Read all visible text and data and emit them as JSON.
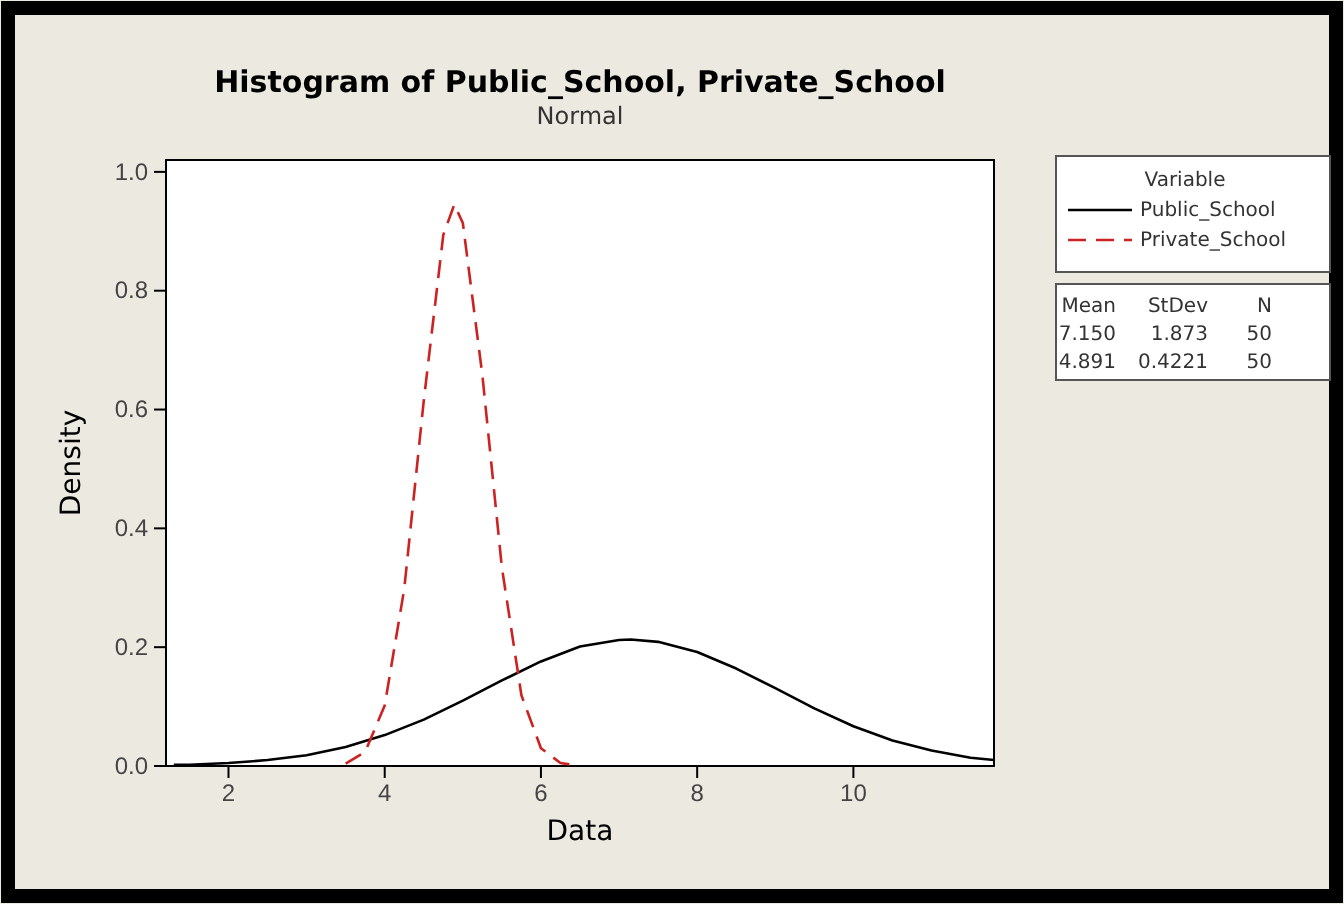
{
  "chart_data": {
    "type": "line",
    "title": "Histogram of Public_School, Private_School",
    "subtitle": "Normal",
    "xlabel": "Data",
    "ylabel": "Density",
    "xlim": [
      1.2,
      11.8
    ],
    "xticks": [
      2,
      4,
      6,
      8,
      10
    ],
    "ylim": [
      0,
      1.02
    ],
    "yticks": [
      {
        "value": 0,
        "label": "0.0"
      },
      {
        "value": 0.2,
        "label": "0.2"
      },
      {
        "value": 0.4,
        "label": "0.4"
      },
      {
        "value": 0.6,
        "label": "0.6"
      },
      {
        "value": 0.8,
        "label": "0.8"
      },
      {
        "value": 1,
        "label": "1.0"
      }
    ],
    "grid": false,
    "legend": "top right",
    "legend_title": "Variable",
    "marker": "none",
    "series": [
      {
        "name": "Public_School",
        "color": "#000000",
        "line_style": "solid",
        "x": [
          1.3,
          1.5,
          2,
          2.5,
          3,
          3.5,
          4,
          4.5,
          5,
          5.5,
          6,
          6.5,
          7,
          7.15,
          7.5,
          8,
          8.5,
          9,
          9.5,
          10,
          10.5,
          11,
          11.5,
          11.8
        ],
        "values": [
          0.002,
          0.002,
          0.005,
          0.01,
          0.018,
          0.032,
          0.052,
          0.078,
          0.11,
          0.144,
          0.176,
          0.201,
          0.212,
          0.213,
          0.209,
          0.192,
          0.164,
          0.131,
          0.097,
          0.067,
          0.043,
          0.026,
          0.014,
          0.01
        ]
      },
      {
        "name": "Private_School",
        "color": "#cc2222",
        "line_style": "dashed",
        "x": [
          3.5,
          3.75,
          4,
          4.25,
          4.5,
          4.75,
          4.891,
          5,
          5.25,
          5.5,
          5.75,
          6,
          6.25,
          6.4
        ],
        "values": [
          0.004,
          0.024,
          0.102,
          0.298,
          0.615,
          0.894,
          0.945,
          0.914,
          0.658,
          0.334,
          0.119,
          0.03,
          0.005,
          0.002
        ]
      }
    ],
    "annotations": [
      "Mean",
      "StDev",
      "N",
      "7.150",
      "1.873",
      "50",
      "4.891",
      "0.4221",
      "50"
    ]
  }
}
